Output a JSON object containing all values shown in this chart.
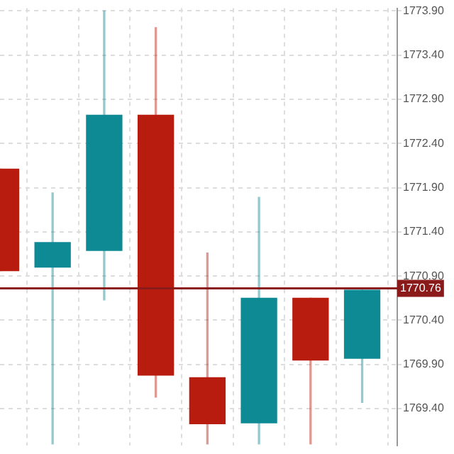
{
  "chart_data": {
    "type": "candlestick",
    "categories": [
      null,
      null,
      null,
      null,
      null,
      null,
      null,
      null
    ],
    "ohlc": [
      [
        1772.11,
        1772.11,
        1770.96,
        1770.96
      ],
      [
        1771.0,
        1771.84,
        1769.0,
        1771.28
      ],
      [
        1771.19,
        1773.9,
        1770.63,
        1772.72
      ],
      [
        1772.72,
        1773.71,
        1769.53,
        1769.78
      ],
      [
        1769.75,
        1771.16,
        1769.0,
        1769.23
      ],
      [
        1769.24,
        1771.79,
        1769.0,
        1770.65
      ],
      [
        1770.65,
        1770.65,
        1769.0,
        1769.95
      ],
      [
        1769.97,
        1770.74,
        1769.47,
        1770.74
      ]
    ],
    "colors": [
      "#b81c0f",
      "#0e8a94",
      "#0e8a94",
      "#b81c0f",
      "#b81c0f",
      "#0e8a94",
      "#b81c0f",
      "#0e8a94"
    ],
    "ylim": [
      1768.98,
      1773.93
    ],
    "yticks": [
      {
        "value": 1773.9,
        "label": "1773.90"
      },
      {
        "value": 1773.4,
        "label": "1773.40"
      },
      {
        "value": 1772.9,
        "label": "1772.90"
      },
      {
        "value": 1772.4,
        "label": "1772.40"
      },
      {
        "value": 1771.9,
        "label": "1771.90"
      },
      {
        "value": 1771.4,
        "label": "1771.40"
      },
      {
        "value": 1770.9,
        "label": "1770.90"
      },
      {
        "value": 1770.4,
        "label": "1770.40"
      },
      {
        "value": 1769.9,
        "label": "1769.90"
      },
      {
        "value": 1769.4,
        "label": "1769.40"
      }
    ],
    "ref_lines": [
      {
        "axis": "y",
        "value": 1770.76,
        "label": "1770.76",
        "color": "#8b1a1a"
      }
    ],
    "grid": true
  }
}
